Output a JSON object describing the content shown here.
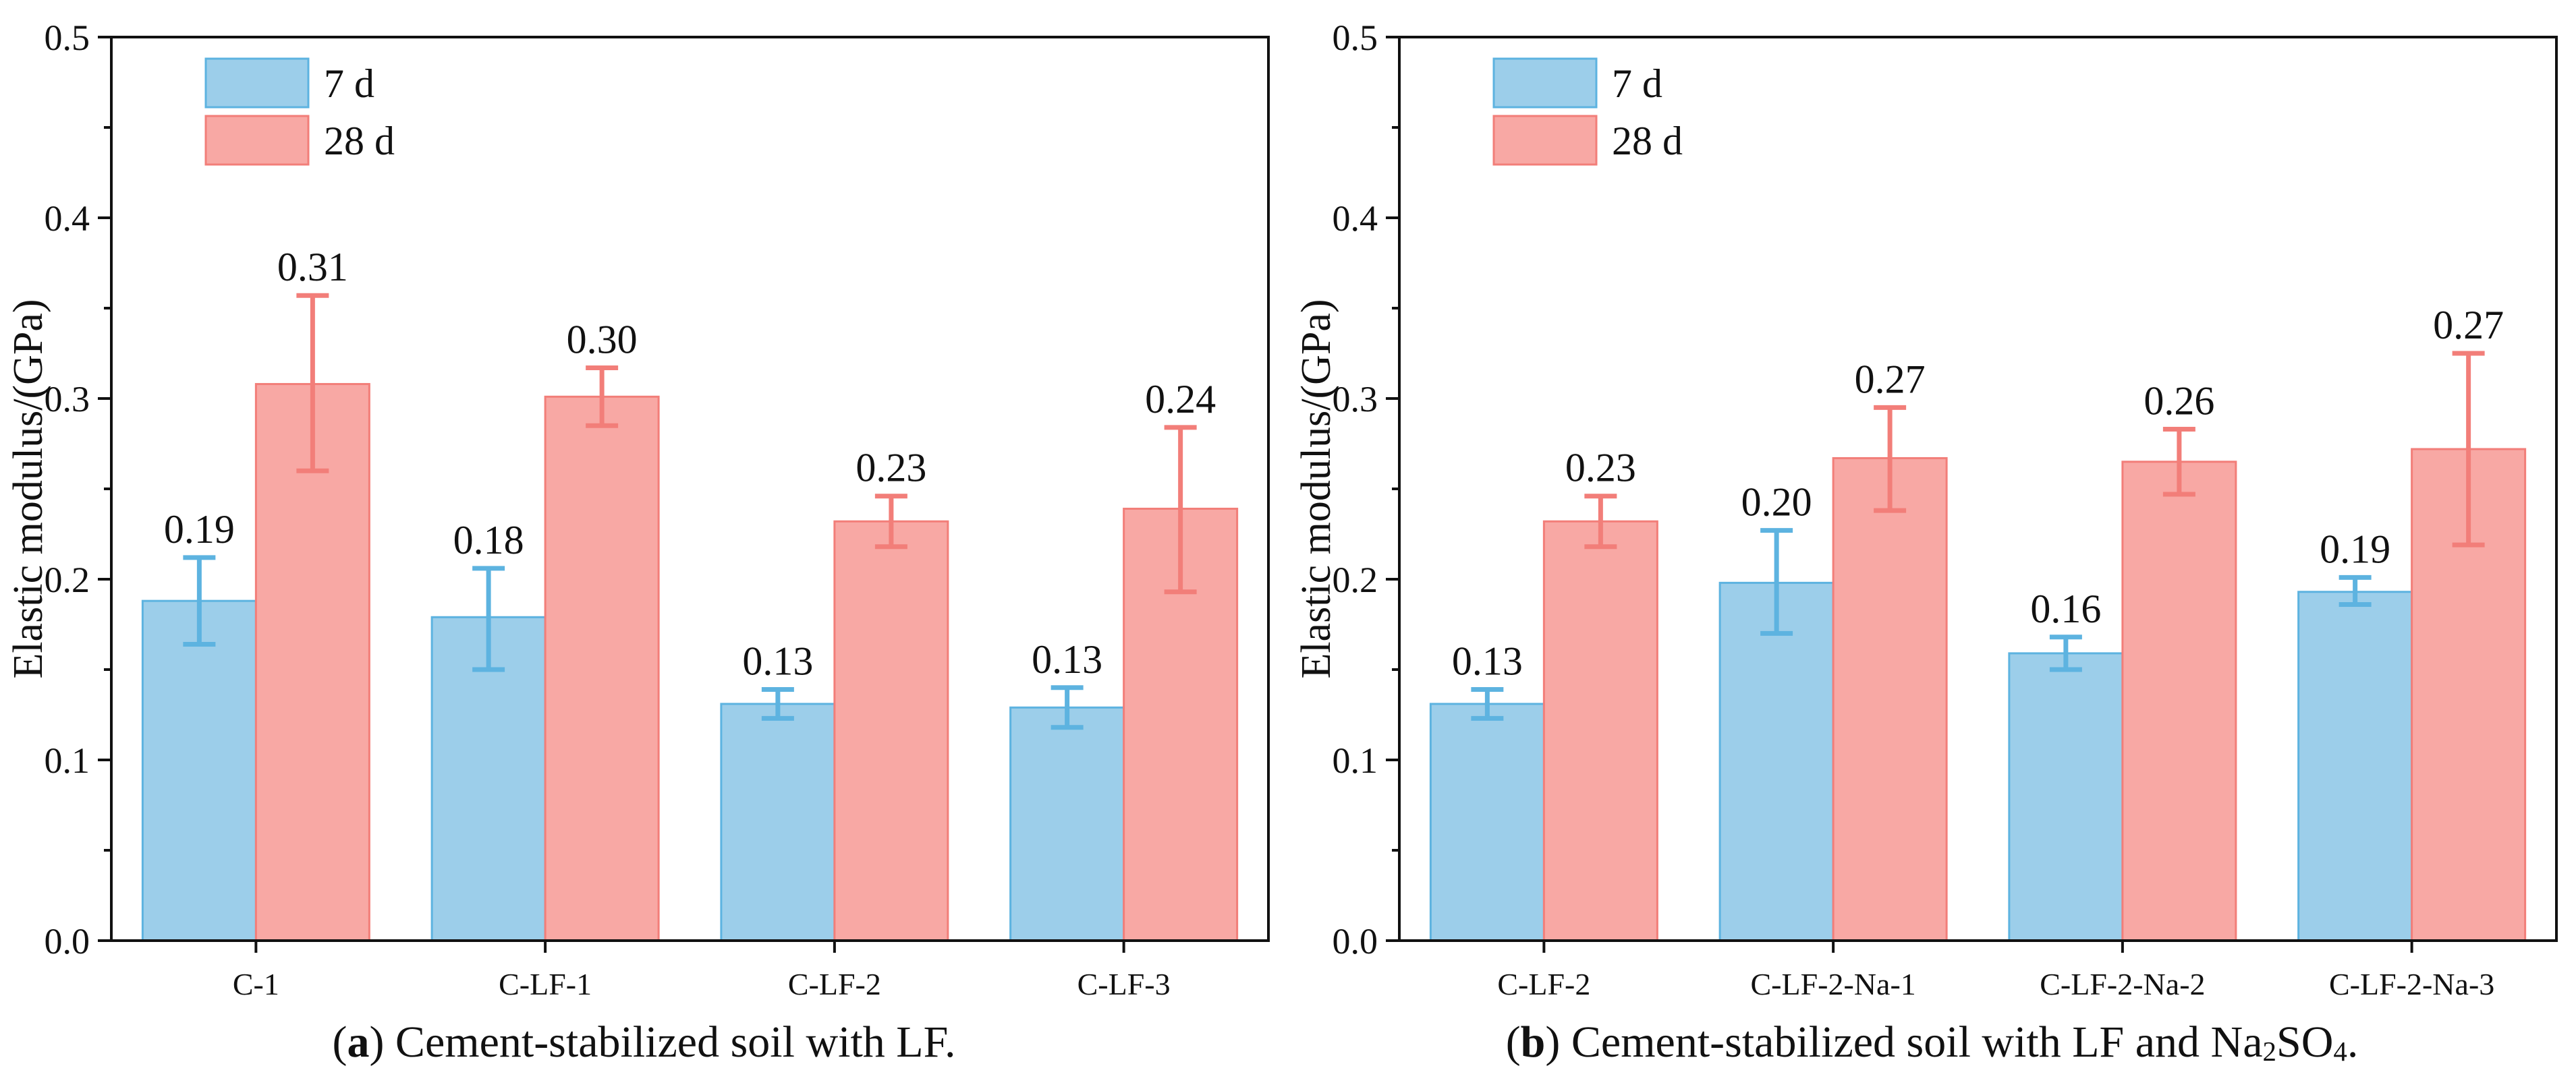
{
  "colors": {
    "series_7d_fill": "#9CCEEA",
    "series_7d_stroke": "#5DB3E0",
    "series_28d_fill": "#F8A8A4",
    "series_28d_stroke": "#F27E79",
    "axis": "#111111"
  },
  "captions": {
    "a": {
      "letter": "a",
      "text": " Cement-stabilized soil with LF."
    },
    "b": {
      "letter": "b",
      "text_before": " Cement-stabilized soil with LF and Na",
      "sub1": "2",
      "mid": "SO",
      "sub2": "4",
      "text_after": "."
    }
  },
  "chart_data": [
    {
      "id": "a",
      "type": "bar",
      "ylabel": "Elastic modulus/(GPa)",
      "ylim": [
        0,
        0.5
      ],
      "yticks": [
        "0.0",
        "0.1",
        "0.2",
        "0.3",
        "0.4",
        "0.5"
      ],
      "legend_position": "top-left",
      "categories": [
        "C-1",
        "C-LF-1",
        "C-LF-2",
        "C-LF-3"
      ],
      "series": [
        {
          "name": "7 d",
          "values": [
            0.188,
            0.179,
            0.131,
            0.129
          ],
          "err_low": [
            0.164,
            0.15,
            0.123,
            0.118
          ],
          "err_high": [
            0.212,
            0.206,
            0.139,
            0.14
          ],
          "labels": [
            "0.19",
            "0.18",
            "0.13",
            "0.13"
          ]
        },
        {
          "name": "28 d",
          "values": [
            0.308,
            0.301,
            0.232,
            0.239
          ],
          "err_low": [
            0.26,
            0.285,
            0.218,
            0.193
          ],
          "err_high": [
            0.357,
            0.317,
            0.246,
            0.284
          ],
          "labels": [
            "0.31",
            "0.30",
            "0.23",
            "0.24"
          ]
        }
      ]
    },
    {
      "id": "b",
      "type": "bar",
      "ylabel": "Elastic modulus/(GPa)",
      "ylim": [
        0,
        0.5
      ],
      "yticks": [
        "0.0",
        "0.1",
        "0.2",
        "0.3",
        "0.4",
        "0.5"
      ],
      "legend_position": "top-left",
      "categories": [
        "C-LF-2",
        "C-LF-2-Na-1",
        "C-LF-2-Na-2",
        "C-LF-2-Na-3"
      ],
      "series": [
        {
          "name": "7 d",
          "values": [
            0.131,
            0.198,
            0.159,
            0.193
          ],
          "err_low": [
            0.123,
            0.17,
            0.15,
            0.186
          ],
          "err_high": [
            0.139,
            0.227,
            0.168,
            0.201
          ],
          "labels": [
            "0.13",
            "0.20",
            "0.16",
            "0.19"
          ]
        },
        {
          "name": "28 d",
          "values": [
            0.232,
            0.267,
            0.265,
            0.272
          ],
          "err_low": [
            0.218,
            0.238,
            0.247,
            0.219
          ],
          "err_high": [
            0.246,
            0.295,
            0.283,
            0.325
          ],
          "labels": [
            "0.23",
            "0.27",
            "0.26",
            "0.27"
          ]
        }
      ]
    }
  ]
}
